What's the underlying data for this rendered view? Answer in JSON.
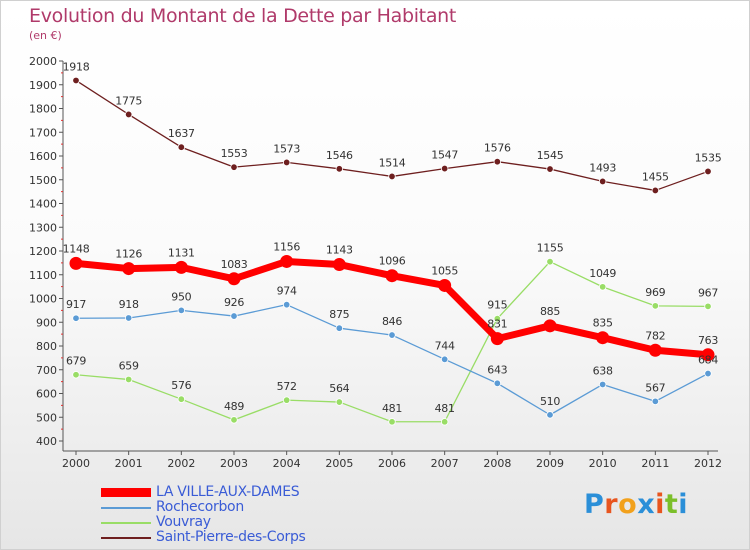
{
  "title": "Evolution du Montant de la Dette par Habitant",
  "unit": "(en €)",
  "logo": {
    "letters": [
      "P",
      "r",
      "o",
      "x",
      "i",
      "t",
      "i"
    ],
    "colors": [
      "#2b8fd8",
      "#e8551f",
      "#f2a11c",
      "#2b8fd8",
      "#e8551f",
      "#7bbf2a",
      "#2b8fd8"
    ]
  },
  "chart_data": {
    "type": "line",
    "x": [
      "2000",
      "2001",
      "2002",
      "2003",
      "2004",
      "2005",
      "2006",
      "2007",
      "2008",
      "2009",
      "2010",
      "2011",
      "2012"
    ],
    "y_ticks": [
      "400",
      "500",
      "600",
      "700",
      "800",
      "900",
      "1000",
      "1100",
      "1200",
      "1300",
      "1400",
      "1500",
      "1600",
      "1700",
      "1800",
      "1900",
      "2000"
    ],
    "ylim": [
      400,
      2000
    ],
    "grid": false,
    "legend_position": "bottom-left",
    "series": [
      {
        "name": "LA VILLE-AUX-DAMES",
        "color": "#ff0000",
        "values": [
          1148,
          1126,
          1131,
          1083,
          1156,
          1143,
          1096,
          1055,
          831,
          885,
          835,
          782,
          763
        ],
        "labels": [
          "1148",
          "1126",
          "1131",
          "1083",
          "1156",
          "1143",
          "1096",
          "1055",
          "831",
          "885",
          "835",
          "782",
          "763"
        ]
      },
      {
        "name": "Rochecorbon",
        "color": "#5b9bd5",
        "values": [
          917,
          918,
          950,
          926,
          974,
          875,
          846,
          744,
          643,
          510,
          638,
          567,
          684
        ],
        "labels": [
          "917",
          "918",
          "950",
          "926",
          "974",
          "875",
          "846",
          "744",
          "643",
          "510",
          "638",
          "567",
          "684"
        ]
      },
      {
        "name": "Vouvray",
        "color": "#99dd66",
        "values": [
          679,
          659,
          576,
          489,
          572,
          564,
          481,
          481,
          915,
          1155,
          1049,
          969,
          967
        ],
        "labels": [
          "679",
          "659",
          "576",
          "489",
          "572",
          "564",
          "481",
          "481",
          "915",
          "1155",
          "1049",
          "969",
          "967"
        ]
      },
      {
        "name": "Saint-Pierre-des-Corps",
        "color": "#6e1f1f",
        "values": [
          1918,
          1775,
          1637,
          1553,
          1573,
          1546,
          1514,
          1547,
          1576,
          1545,
          1493,
          1455,
          1535
        ],
        "labels": [
          "1918",
          "1775",
          "1637",
          "1553",
          "1573",
          "1546",
          "1514",
          "1547",
          "1576",
          "1545",
          "1493",
          "1455",
          "1535"
        ]
      }
    ]
  }
}
